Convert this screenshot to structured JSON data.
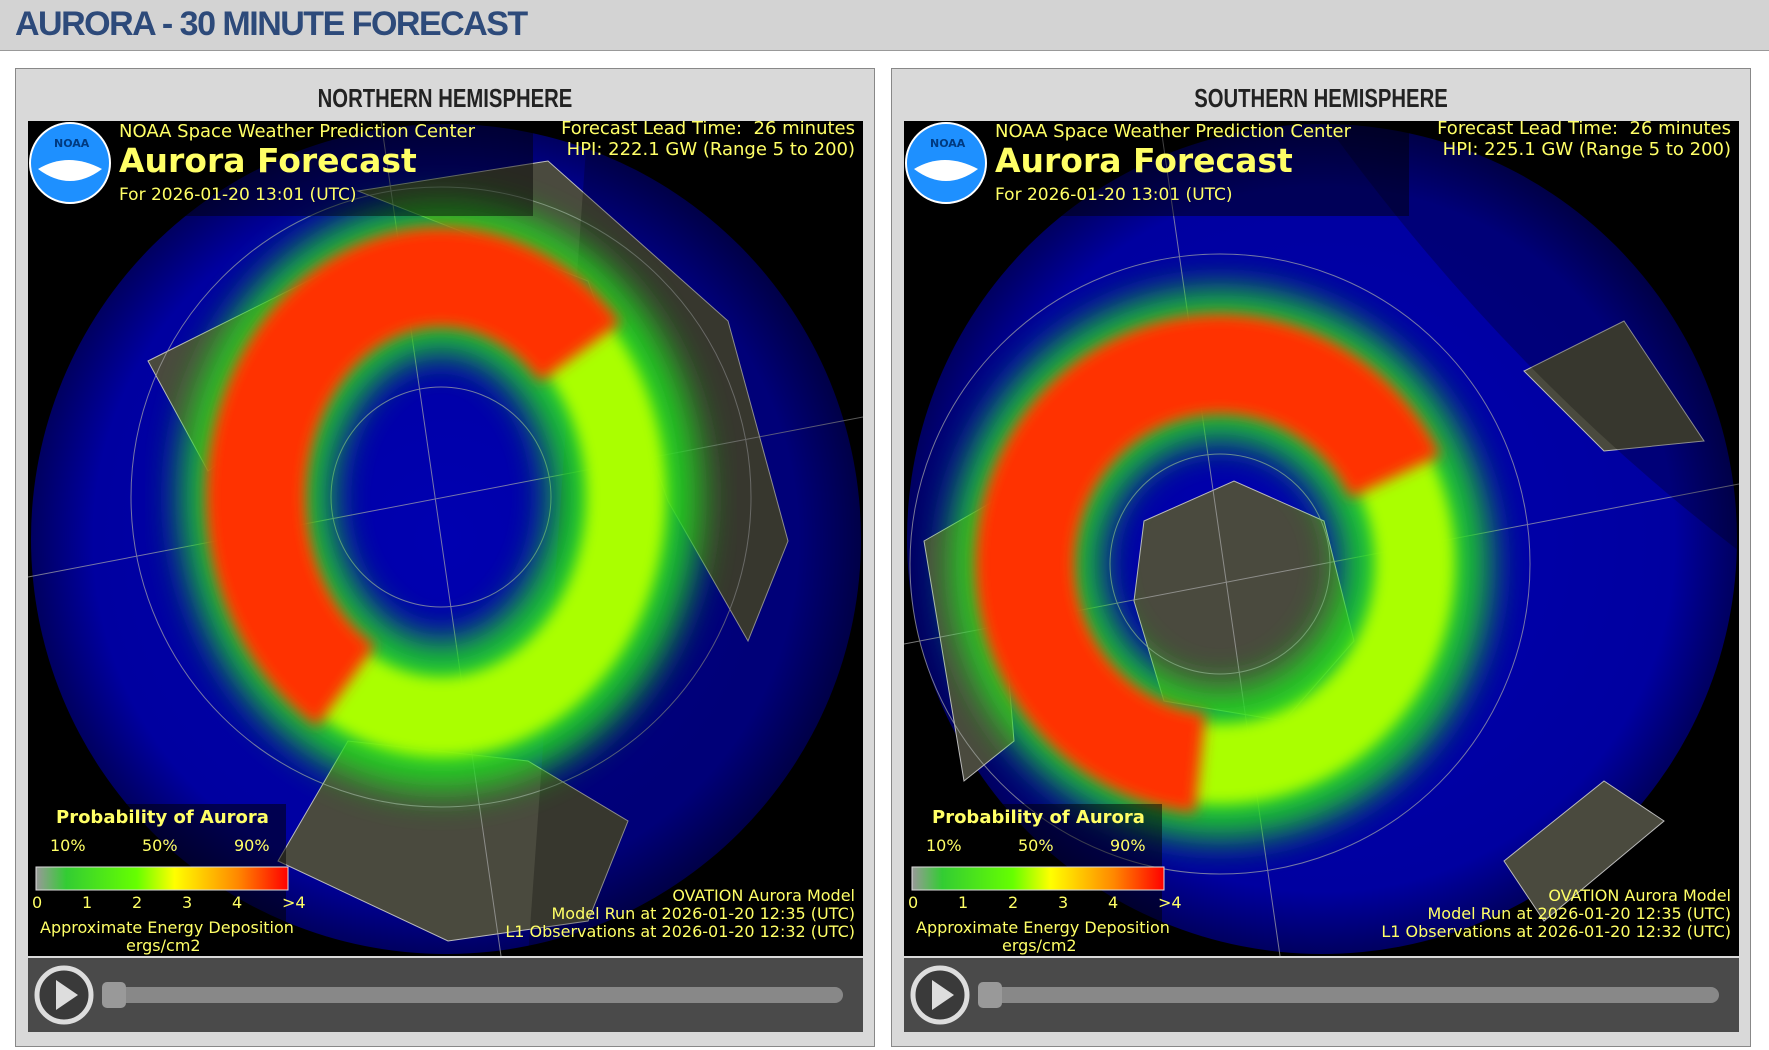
{
  "header": {
    "title": "AURORA - 30 MINUTE FORECAST"
  },
  "panels": [
    {
      "title": "NORTHERN HEMISPHERE",
      "logo": "NOAA",
      "source": "NOAA Space Weather Prediction Center",
      "product": "Aurora Forecast",
      "valid": "For 2026-01-20 13:01 (UTC)",
      "lead_time": "Forecast Lead Time:  26 minutes",
      "hpi": "HPI: 222.1 GW (Range 5 to 200)",
      "legend": {
        "title": "Probability of Aurora",
        "percent_labels": [
          "10%",
          "50%",
          "90%"
        ],
        "energy_labels": [
          "0",
          "1",
          "2",
          "3",
          "4",
          ">4"
        ],
        "caption": "Approximate Energy Deposition",
        "units": "ergs/cm2"
      },
      "model": "OVATION Aurora Model",
      "model_run": "Model Run at 2026-01-20 12:35 (UTC)",
      "observations": "L1 Observations at 2026-01-20 12:32 (UTC)"
    },
    {
      "title": "SOUTHERN HEMISPHERE",
      "logo": "NOAA",
      "source": "NOAA Space Weather Prediction Center",
      "product": "Aurora Forecast",
      "valid": "For 2026-01-20 13:01 (UTC)",
      "lead_time": "Forecast Lead Time:  26 minutes",
      "hpi": "HPI: 225.1 GW (Range 5 to 200)",
      "legend": {
        "title": "Probability of Aurora",
        "percent_labels": [
          "10%",
          "50%",
          "90%"
        ],
        "energy_labels": [
          "0",
          "1",
          "2",
          "3",
          "4",
          ">4"
        ],
        "caption": "Approximate Energy Deposition",
        "units": "ergs/cm2"
      },
      "model": "OVATION Aurora Model",
      "model_run": "Model Run at 2026-01-20 12:35 (UTC)",
      "observations": "L1 Observations at 2026-01-20 12:32 (UTC)"
    }
  ]
}
